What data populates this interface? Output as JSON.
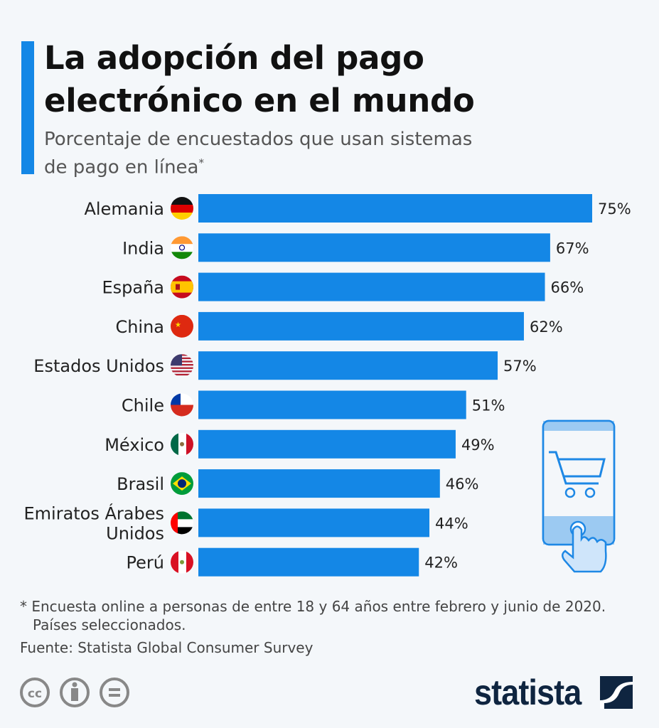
{
  "title": "La adopción del pago electrónico en el mundo",
  "title_lines": [
    "La adopción del pago",
    "electrónico en el mundo"
  ],
  "subtitle_lines": [
    "Porcentaje de encuestados que usan sistemas",
    "de pago en línea"
  ],
  "subtitle_mark": "*",
  "footnote_lines": [
    "* Encuesta online a personas de entre 18 y 64 años entre febrero y junio de 2020.",
    "Países seleccionados."
  ],
  "source": "Fuente: Statista Global Consumer Survey",
  "brand": "statista",
  "colors": {
    "bar": "#1487e6",
    "accent": "#1487e6",
    "logo": "#0f2540"
  },
  "icons": [
    "flag-germany",
    "flag-india",
    "flag-spain",
    "flag-china",
    "flag-usa",
    "flag-chile",
    "flag-mexico",
    "flag-brazil",
    "flag-uae",
    "flag-peru",
    "phone-cart-illustration",
    "cc-icon",
    "by-icon",
    "nd-icon",
    "statista-logo"
  ],
  "chart_data": {
    "type": "bar",
    "orientation": "horizontal",
    "categories": [
      "Alemania",
      "India",
      "España",
      "China",
      "Estados Unidos",
      "Chile",
      "México",
      "Brasil",
      "Emiratos Árabes Unidos",
      "Perú"
    ],
    "category_lines": [
      [
        "Alemania"
      ],
      [
        "India"
      ],
      [
        "España"
      ],
      [
        "China"
      ],
      [
        "Estados Unidos"
      ],
      [
        "Chile"
      ],
      [
        "México"
      ],
      [
        "Brasil"
      ],
      [
        "Emiratos Árabes",
        "Unidos"
      ],
      [
        "Perú"
      ]
    ],
    "values": [
      75,
      67,
      66,
      62,
      57,
      51,
      49,
      46,
      44,
      42
    ],
    "value_labels": [
      "75%",
      "67%",
      "66%",
      "62%",
      "57%",
      "51%",
      "49%",
      "46%",
      "44%",
      "42%"
    ],
    "unit": "%",
    "xlim": [
      0,
      75
    ],
    "grid": false,
    "legend": "none"
  }
}
